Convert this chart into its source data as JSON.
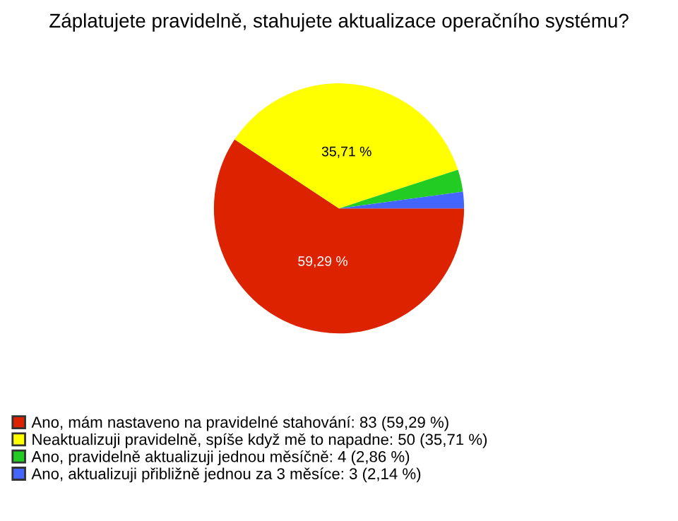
{
  "chart_data": {
    "type": "pie",
    "title": "Záplatujete pravidelně, stahujete aktualizace operačního systému?",
    "categories": [
      "Ano, mám nastaveno na pravidelné stahování: 83 (59,29 %)",
      "Neaktualizuji pravidelně, spíše když mě to napadne: 50 (35,71 %)",
      "Ano, pravidelně aktualizuji jednou měsíčně: 4 (2,86 %)",
      "Ano, aktualizuji přibližně jednou za 3 měsíce: 3 (2,14 %)"
    ],
    "values": [
      59.29,
      35.71,
      2.86,
      2.14
    ],
    "value_labels": [
      "59,29 %",
      "35,71 %",
      null,
      null
    ],
    "colors": [
      "#dd2200",
      "#ffff00",
      "#22cc22",
      "#4466ff"
    ],
    "legend": "bottom left"
  }
}
